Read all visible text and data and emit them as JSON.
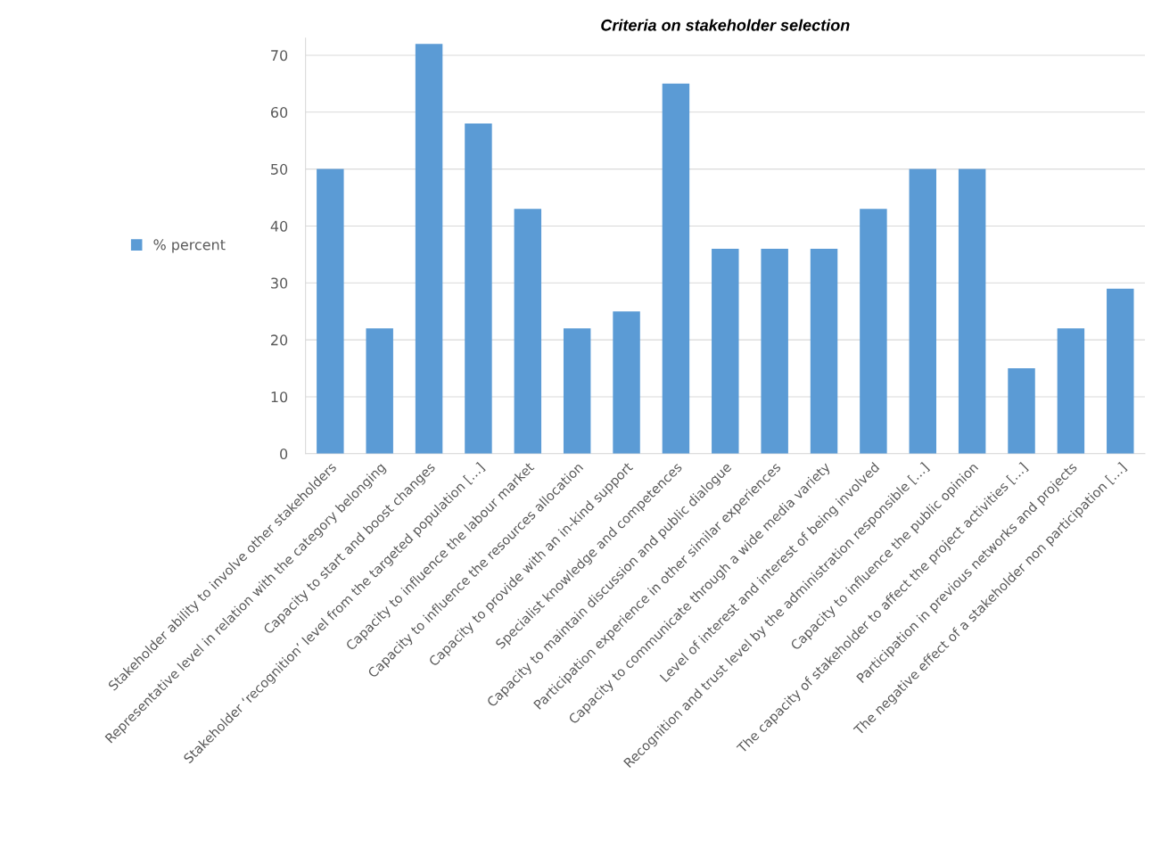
{
  "chart_data": {
    "type": "bar",
    "title": "Criteria on stakeholder selection",
    "categories": [
      "Stakeholder ability to involve other stakeholders",
      "Representative level in relation with the category belonging",
      "Capacity to start and boost changes",
      "Stakeholder ‘recognition’ level from the targeted population […]",
      "Capacity to influence the labour market",
      "Capacity to influence the resources allocation",
      "Capacity to provide with an in-kind support",
      "Specialist knowledge and competences",
      "Capacity to maintain discussion and public dialogue",
      "Participation experience in other similar experiences",
      "Capacity to communicate through a wide media variety",
      "Level of interest and interest of being involved",
      "Recognition and trust level by the administration responsible […]",
      "Capacity to influence the public opinion",
      "The capacity of stakeholder to affect the project activities […]",
      "Participation in previous networks and projects",
      "The negative effect of a stakeholder non participation […]"
    ],
    "series": [
      {
        "name": "% percent",
        "color": "#5b9bd5",
        "values": [
          50,
          22,
          72,
          58,
          43,
          22,
          25,
          65,
          36,
          36,
          36,
          43,
          50,
          50,
          15,
          22,
          29
        ]
      }
    ],
    "ylim": [
      0,
      73
    ],
    "yticks": [
      0,
      10,
      20,
      30,
      40,
      50,
      60,
      70
    ],
    "grid": "y",
    "legend": "left"
  }
}
